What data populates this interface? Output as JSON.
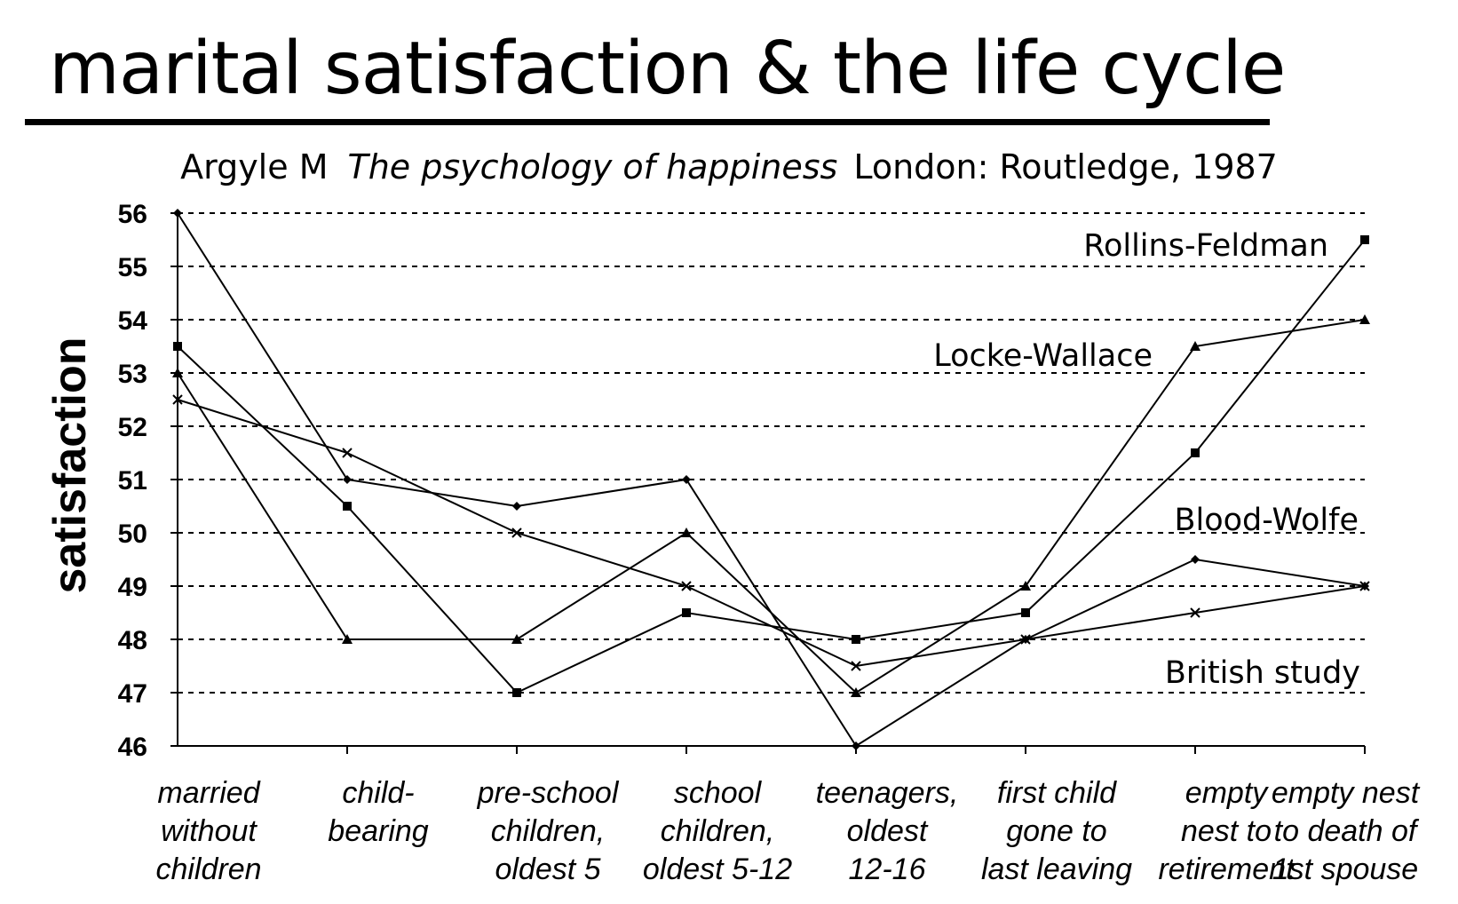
{
  "title": "marital satisfaction & the life cycle",
  "citation": {
    "author": "Argyle M",
    "book": "The psychology of happiness",
    "publisher": "London: Routledge, 1987"
  },
  "chart_data": {
    "type": "line",
    "ylabel": "satisfaction",
    "xlabel": "",
    "ylim": [
      46,
      56
    ],
    "yticks": [
      46,
      47,
      48,
      49,
      50,
      51,
      52,
      53,
      54,
      55,
      56
    ],
    "grid": "horizontal dotted",
    "categories": [
      [
        "married",
        "without",
        "children"
      ],
      [
        "child-",
        "bearing"
      ],
      [
        "pre-school",
        "children,",
        "oldest 5"
      ],
      [
        "school",
        "children,",
        "oldest 5-12"
      ],
      [
        "teenagers,",
        "oldest",
        "12-16"
      ],
      [
        "first child",
        "gone to",
        "last leaving"
      ],
      [
        "empty",
        "nest to",
        "retirement"
      ],
      [
        "empty nest",
        "to death of",
        "1st spouse"
      ]
    ],
    "series": [
      {
        "name": "Rollins-Feldman",
        "marker": "square",
        "values": [
          53.5,
          50.5,
          47,
          48.5,
          48,
          48.5,
          51.5,
          55.5
        ]
      },
      {
        "name": "Locke-Wallace",
        "marker": "triangle",
        "values": [
          53,
          48,
          48,
          50,
          47,
          49,
          53.5,
          54
        ]
      },
      {
        "name": "Blood-Wolfe",
        "marker": "diamond",
        "values": [
          56,
          51,
          50.5,
          51,
          46,
          48,
          49.5,
          49
        ]
      },
      {
        "name": "British study",
        "marker": "x",
        "values": [
          52.5,
          51.5,
          50,
          49,
          47.5,
          48,
          48.5,
          49
        ]
      }
    ],
    "series_labels_position": "right, inside plot"
  }
}
